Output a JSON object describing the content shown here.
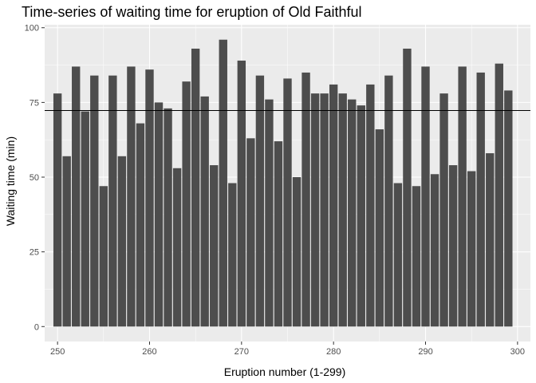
{
  "chart_data": {
    "type": "bar",
    "title": "Time-series of waiting time for eruption of Old Faithful",
    "xlabel": "Eruption number (1-299)",
    "ylabel": "Waiting time (min)",
    "x": [
      250,
      251,
      252,
      253,
      254,
      255,
      256,
      257,
      258,
      259,
      260,
      261,
      262,
      263,
      264,
      265,
      266,
      267,
      268,
      269,
      270,
      271,
      272,
      273,
      274,
      275,
      276,
      277,
      278,
      279,
      280,
      281,
      282,
      283,
      284,
      285,
      286,
      287,
      288,
      289,
      290,
      291,
      292,
      293,
      294,
      295,
      296,
      297,
      298,
      299
    ],
    "values": [
      78,
      57,
      87,
      72,
      84,
      47,
      84,
      57,
      87,
      68,
      86,
      75,
      73,
      53,
      82,
      93,
      77,
      54,
      96,
      48,
      89,
      63,
      84,
      76,
      62,
      83,
      50,
      85,
      78,
      78,
      81,
      78,
      76,
      74,
      81,
      66,
      84,
      48,
      93,
      47,
      87,
      51,
      78,
      54,
      87,
      52,
      85,
      58,
      88,
      79
    ],
    "hline": 72.3,
    "xlim": [
      248.6,
      301.4
    ],
    "ylim": [
      -5,
      101
    ],
    "x_ticks": [
      250,
      260,
      270,
      280,
      290,
      300
    ],
    "y_ticks": [
      0,
      25,
      50,
      75,
      100
    ],
    "grid": true,
    "legend": "none",
    "colors": {
      "panel": "#ebebeb",
      "grid_major": "#ffffff",
      "bar": "#4d4d4d",
      "hline": "#000000",
      "tick": "#333333"
    }
  }
}
